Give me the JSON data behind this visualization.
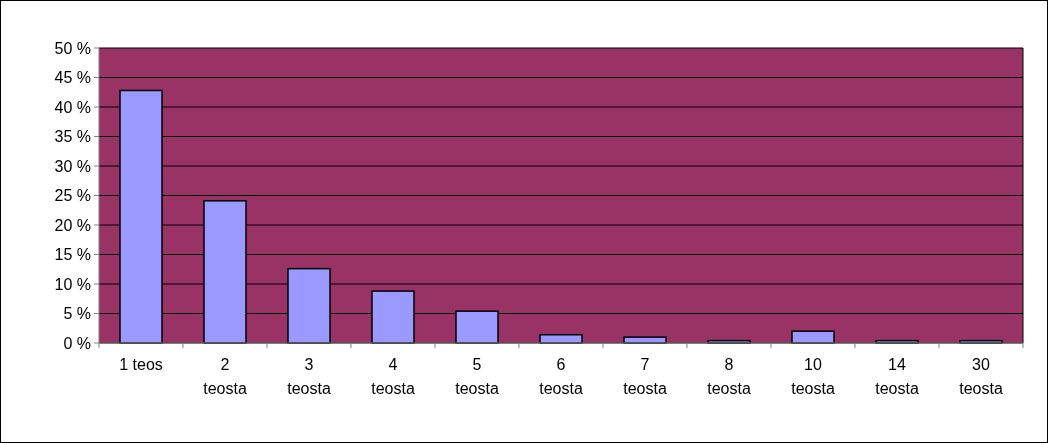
{
  "chart_data": {
    "type": "bar",
    "categories": [
      "1 teos",
      "2 teosta",
      "3 teosta",
      "4 teosta",
      "5 teosta",
      "6 teosta",
      "7 teosta",
      "8 teosta",
      "10 teosta",
      "14 teosta",
      "30 teosta"
    ],
    "values": [
      42.8,
      24.1,
      12.6,
      8.8,
      5.4,
      1.4,
      1.0,
      0.4,
      2.0,
      0.4,
      0.4
    ],
    "color": "#9999ff",
    "ylim": [
      0,
      50
    ],
    "yticks": [
      {
        "value": 0,
        "label": "0 %"
      },
      {
        "value": 5,
        "label": "5 %"
      },
      {
        "value": 10,
        "label": "10 %"
      },
      {
        "value": 15,
        "label": "15 %"
      },
      {
        "value": 20,
        "label": "20 %"
      },
      {
        "value": 25,
        "label": "25 %"
      },
      {
        "value": 30,
        "label": "30 %"
      },
      {
        "value": 35,
        "label": "35 %"
      },
      {
        "value": 40,
        "label": "40 %"
      },
      {
        "value": 45,
        "label": "45 %"
      },
      {
        "value": 50,
        "label": "50 %"
      }
    ],
    "grid": "y"
  }
}
